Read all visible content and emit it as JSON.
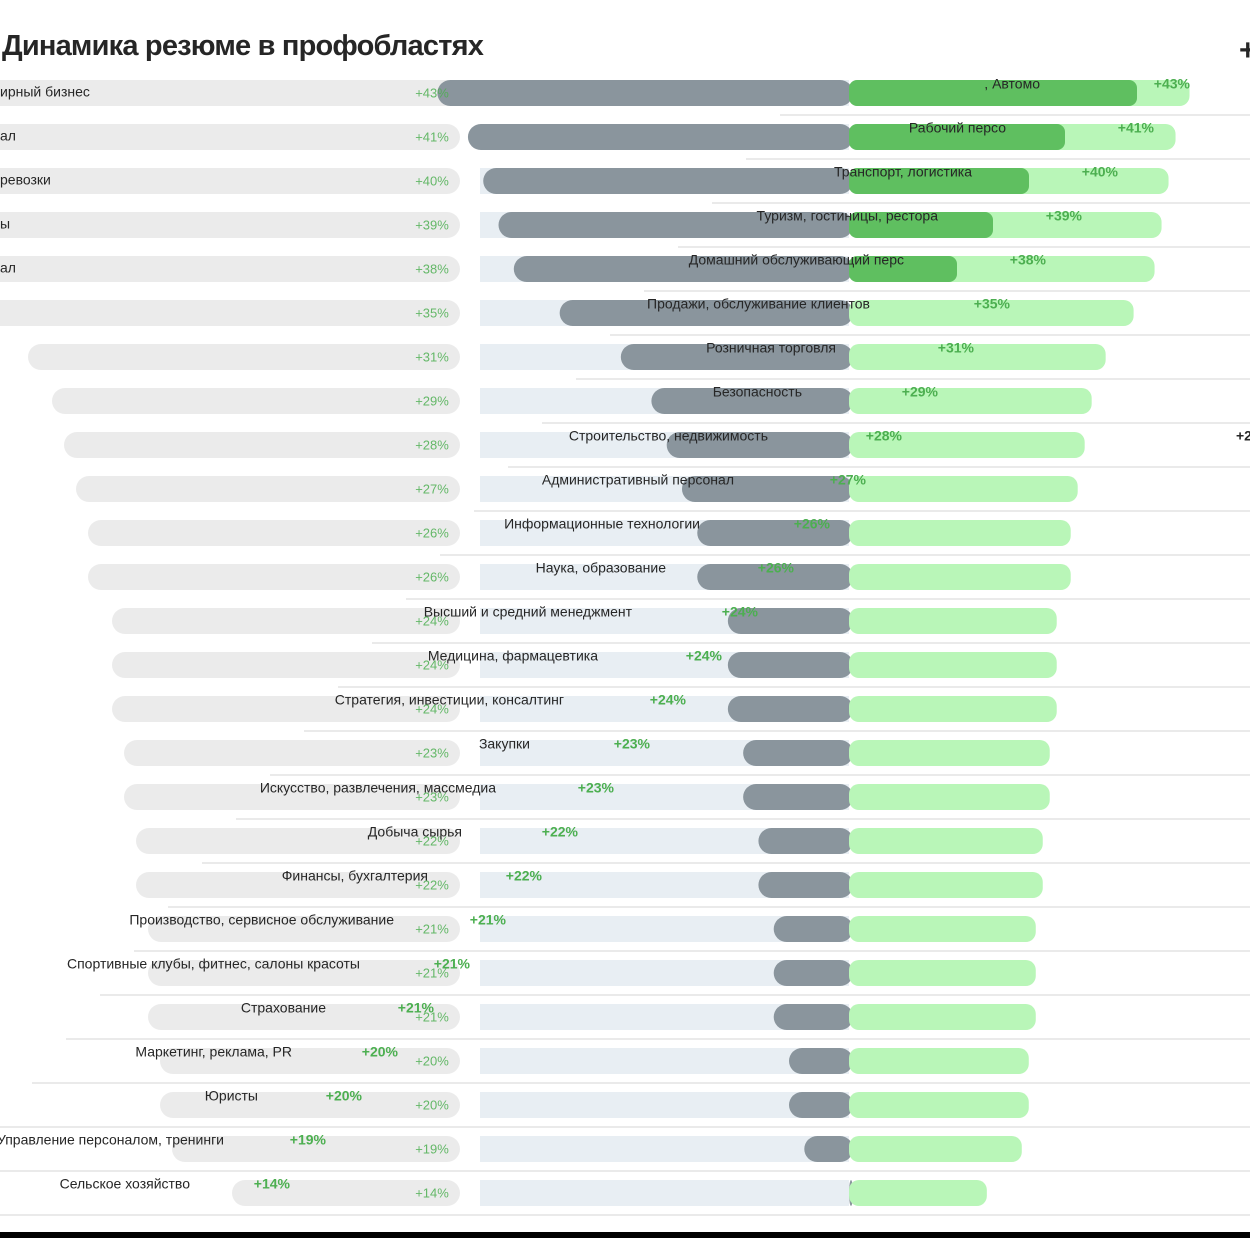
{
  "title": "Динамика резюме в профобластях",
  "title_mark": "+",
  "colors": {
    "grey_track": "#ebebeb",
    "blue_track": "#e8eef3",
    "grey_bar": "#8a959d",
    "green_bar": "#5fbf60",
    "green_light": "#b9f6b8",
    "text": "#262626",
    "green_text": "#4caf50",
    "rule": "#d4d4d4"
  },
  "chart_data": {
    "type": "bar",
    "title": "Динамика резюме в профобластях",
    "categories": [
      "Автомобильный бизнес",
      "Рабочий персонал",
      "Транспорт, логистика, перевозки",
      "Туризм, гостиницы, рестораны",
      "Домашний обслуживающий персонал",
      "Продажи, обслуживание клиентов",
      "Розничная торговля",
      "Безопасность",
      "Строительство, недвижимость",
      "Административный персонал",
      "Информационные технологии",
      "Наука, образование",
      "Высший и средний менеджмент",
      "Медицина, фармацевтика",
      "Стратегия, инвестиции, консалтинг",
      "Закупки",
      "Искусство, развлечения, массмедиа",
      "Добыча сырья",
      "Финансы, бухгалтерия",
      "Производство, сервисное обслуживание",
      "Спортивные клубы, фитнес, салоны красоты",
      "Страхование",
      "Маркетинг, реклама, PR",
      "Юристы",
      "Управление персоналом, тренинги",
      "Сельское хозяйство"
    ],
    "visible_labels": [
      ", Автомо",
      "Рабочий персо",
      "Транспорт, логистика",
      "Туризм, гостиницы, рестора",
      "Домашний обслуживающий перс",
      "Продажи, обслуживание клиентов",
      "Розничная торговля",
      "Безопасность",
      "Строительство, недвижимость",
      "Административный персонал",
      "Информационные технологии",
      "Наука, образование",
      "Высший и средний менеджмент",
      "Медицина, фармацевтика",
      "Стратегия, инвестиции, консалтинг",
      "Закупки",
      "Искусство, развлечения, массмедиа",
      "Добыча сырья",
      "Финансы, бухгалтерия",
      "Производство, сервисное обслуживание",
      "Спортивные клубы, фитнес, салоны красоты",
      "Страхование",
      "Маркетинг, реклама, PR",
      "Юристы",
      "Управление персоналом, тренинги",
      "Сельское хозяйство"
    ],
    "values": [
      43,
      41,
      40,
      39,
      38,
      35,
      31,
      29,
      28,
      27,
      26,
      26,
      24,
      24,
      24,
      23,
      23,
      22,
      22,
      21,
      21,
      21,
      20,
      20,
      19,
      14
    ],
    "value_labels": [
      "+43%",
      "+41%",
      "+40%",
      "+39%",
      "+38%",
      "+35%",
      "+31%",
      "+29%",
      "+28%",
      "+27%",
      "+26%",
      "+26%",
      "+24%",
      "+24%",
      "+24%",
      "+23%",
      "+23%",
      "+22%",
      "+22%",
      "+21%",
      "+21%",
      "+21%",
      "+20%",
      "+20%",
      "+19%",
      "+14%"
    ],
    "ylim": [
      0,
      45
    ],
    "xlabel": "",
    "ylabel": ""
  },
  "ghost_labels_left": [
    "ирный бизнес",
    "ал",
    "ревозки",
    "ы",
    "ал",
    "",
    "",
    "",
    "",
    "",
    "",
    "",
    "",
    "",
    "",
    "",
    "",
    "",
    "",
    "",
    "",
    "",
    "",
    "",
    "",
    ""
  ],
  "edge_labels_right": {
    "8": "+2"
  }
}
